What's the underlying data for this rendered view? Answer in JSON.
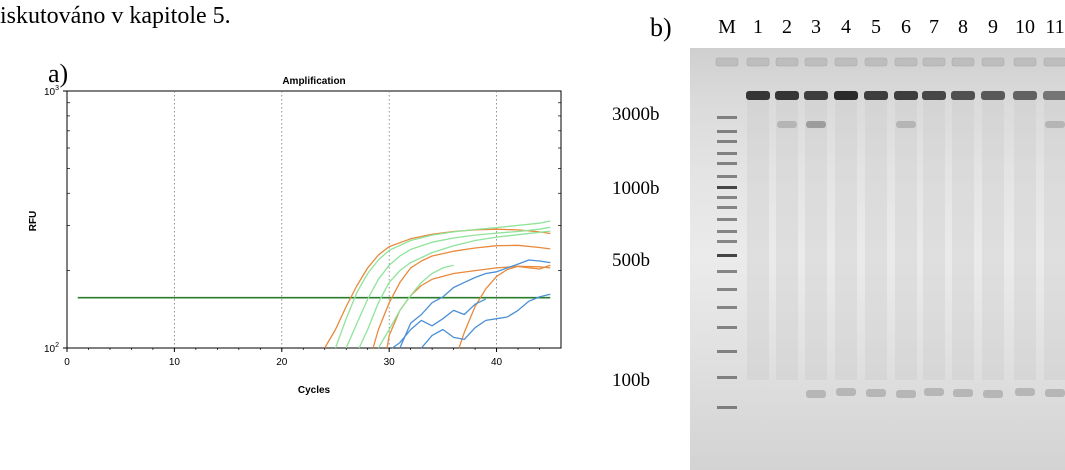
{
  "top_text": "iskutováno v kapitole 5.",
  "panel_a": {
    "label": "a)",
    "chart_data": {
      "type": "line",
      "title": "Amplification",
      "xlabel": "Cycles",
      "ylabel": "RFU",
      "x_ticks": [
        "0",
        "10",
        "20",
        "30",
        "40"
      ],
      "y_ticks": [
        {
          "base": "10",
          "exp": "2"
        },
        {
          "base": "10",
          "exp": "3"
        }
      ],
      "xlim": [
        0,
        46
      ],
      "ylim": [
        100,
        1000
      ],
      "y_scale": "log",
      "grid": "vertical-dotted",
      "threshold": 157,
      "series": [
        {
          "color": "#e8893c",
          "x": [
            24,
            25,
            26,
            27,
            28,
            29,
            30,
            32,
            34,
            36,
            38,
            40,
            42,
            44,
            45
          ],
          "y": [
            100,
            118,
            145,
            175,
            205,
            230,
            248,
            266,
            277,
            284,
            288,
            290,
            288,
            283,
            279
          ]
        },
        {
          "color": "#e8893c",
          "x": [
            28.5,
            29,
            30,
            31,
            32,
            33,
            34,
            36,
            38,
            40,
            42,
            44,
            45
          ],
          "y": [
            100,
            118,
            150,
            180,
            205,
            218,
            228,
            238,
            245,
            250,
            251,
            246,
            243
          ]
        },
        {
          "color": "#e8893c",
          "x": [
            29.8,
            30,
            31,
            32,
            33,
            34,
            36,
            38,
            40,
            42,
            44,
            45
          ],
          "y": [
            100,
            112,
            140,
            160,
            175,
            185,
            195,
            200,
            205,
            208,
            207,
            205
          ]
        },
        {
          "color": "#e8893c",
          "x": [
            36.5,
            37,
            38,
            39,
            40,
            41,
            42,
            43,
            44,
            45
          ],
          "y": [
            100,
            115,
            145,
            170,
            190,
            202,
            208,
            205,
            203,
            210
          ]
        },
        {
          "color": "#8fe39a",
          "x": [
            25,
            26,
            27,
            28,
            29,
            30,
            32,
            34,
            36,
            38,
            40,
            42,
            44,
            45
          ],
          "y": [
            100,
            130,
            165,
            195,
            220,
            240,
            262,
            275,
            283,
            289,
            294,
            300,
            306,
            312
          ]
        },
        {
          "color": "#8fe39a",
          "x": [
            26,
            27,
            28,
            29,
            30,
            31,
            32,
            34,
            36,
            38,
            40,
            42,
            44,
            45
          ],
          "y": [
            100,
            125,
            155,
            185,
            210,
            228,
            242,
            258,
            268,
            275,
            280,
            284,
            290,
            295
          ]
        },
        {
          "color": "#8fe39a",
          "x": [
            27.2,
            28,
            29,
            30,
            31,
            32,
            34,
            36,
            38,
            40,
            42,
            44,
            45
          ],
          "y": [
            100,
            118,
            150,
            180,
            200,
            215,
            235,
            250,
            262,
            270,
            276,
            282,
            285
          ]
        },
        {
          "color": "#8fe39a",
          "x": [
            29,
            30,
            31,
            32,
            33,
            34,
            35,
            36
          ],
          "y": [
            100,
            118,
            140,
            160,
            180,
            195,
            205,
            210
          ]
        },
        {
          "color": "#4a90d6",
          "x": [
            31,
            32,
            33,
            34,
            35,
            36,
            37,
            38,
            39,
            40,
            41,
            42,
            43,
            44,
            45
          ],
          "y": [
            100,
            125,
            135,
            150,
            158,
            172,
            180,
            188,
            195,
            198,
            205,
            212,
            220,
            218,
            215
          ]
        },
        {
          "color": "#4a90d6",
          "x": [
            33,
            34,
            35,
            36,
            37,
            38,
            39,
            40,
            41,
            42,
            43,
            44,
            45
          ],
          "y": [
            100,
            112,
            118,
            110,
            108,
            120,
            128,
            130,
            132,
            140,
            152,
            158,
            162
          ]
        },
        {
          "color": "#4a90d6",
          "x": [
            30.3,
            31,
            32,
            33,
            34,
            35,
            36,
            37,
            38,
            39
          ],
          "y": [
            100,
            105,
            118,
            128,
            122,
            130,
            140,
            135,
            148,
            155
          ]
        }
      ]
    }
  },
  "panel_b": {
    "label": "b)",
    "lanes": [
      "M",
      "1",
      "2",
      "3",
      "4",
      "5",
      "6",
      "7",
      "8",
      "9",
      "10",
      "11"
    ],
    "size_markers": [
      "3000b",
      "1000b",
      "500b",
      "100b"
    ]
  }
}
